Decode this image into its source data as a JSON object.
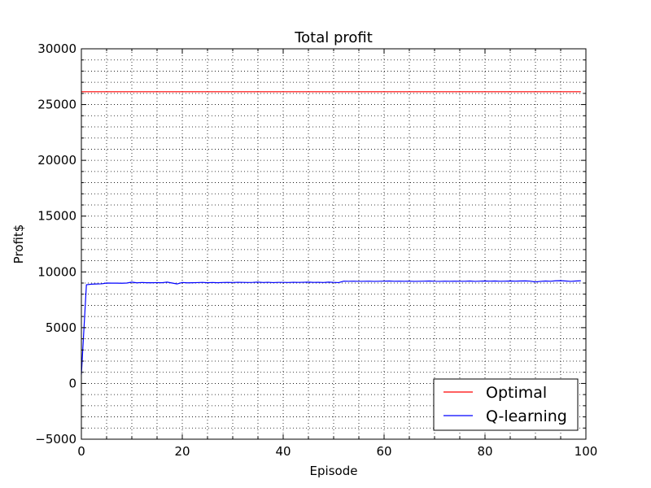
{
  "chart_data": {
    "type": "line",
    "title": "Total profit",
    "xlabel": "Episode",
    "ylabel": "Profit$",
    "xlim": [
      0,
      100
    ],
    "ylim": [
      -5000,
      30000
    ],
    "xticks": [
      0,
      20,
      40,
      60,
      80,
      100
    ],
    "yticks": [
      -5000,
      0,
      5000,
      10000,
      15000,
      20000,
      25000,
      30000
    ],
    "grid": true,
    "legend_position": "bottom-right",
    "series": [
      {
        "name": "Optimal",
        "color": "#ff0000",
        "x": [
          0,
          99
        ],
        "y": [
          26150,
          26150
        ]
      },
      {
        "name": "Q-learning",
        "color": "#0000ff",
        "x": [
          0,
          1,
          2,
          3,
          4,
          5,
          6,
          7,
          8,
          9,
          10,
          11,
          12,
          13,
          14,
          15,
          16,
          17,
          18,
          19,
          20,
          21,
          22,
          23,
          24,
          25,
          26,
          27,
          28,
          29,
          30,
          31,
          32,
          33,
          34,
          35,
          36,
          37,
          38,
          39,
          40,
          41,
          42,
          43,
          44,
          45,
          46,
          47,
          48,
          49,
          50,
          51,
          52,
          53,
          54,
          55,
          56,
          57,
          58,
          59,
          60,
          61,
          62,
          63,
          64,
          65,
          66,
          67,
          68,
          69,
          70,
          71,
          72,
          73,
          74,
          75,
          76,
          77,
          78,
          79,
          80,
          81,
          82,
          83,
          84,
          85,
          86,
          87,
          88,
          89,
          90,
          91,
          92,
          93,
          94,
          95,
          96,
          97,
          98,
          99
        ],
        "y": [
          800,
          8850,
          8900,
          8920,
          8930,
          9000,
          8990,
          8990,
          8980,
          9000,
          9080,
          9020,
          9050,
          9030,
          9030,
          9040,
          9030,
          9080,
          9000,
          8920,
          9050,
          9020,
          9030,
          9040,
          9060,
          9030,
          9050,
          9030,
          9050,
          9060,
          9050,
          9070,
          9060,
          9050,
          9060,
          9080,
          9050,
          9070,
          9040,
          9060,
          9060,
          9050,
          9070,
          9060,
          9070,
          9080,
          9060,
          9070,
          9050,
          9080,
          9060,
          9040,
          9170,
          9160,
          9170,
          9150,
          9160,
          9170,
          9150,
          9160,
          9170,
          9180,
          9160,
          9170,
          9160,
          9170,
          9150,
          9160,
          9170,
          9180,
          9160,
          9150,
          9170,
          9160,
          9170,
          9160,
          9160,
          9180,
          9150,
          9170,
          9180,
          9170,
          9180,
          9160,
          9170,
          9180,
          9170,
          9180,
          9190,
          9170,
          9100,
          9150,
          9180,
          9160,
          9200,
          9210,
          9180,
          9150,
          9180,
          9200
        ]
      }
    ]
  }
}
